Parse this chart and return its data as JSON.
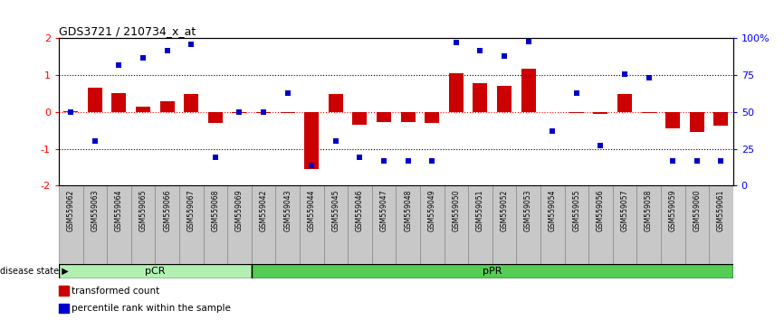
{
  "title": "GDS3721 / 210734_x_at",
  "samples": [
    "GSM559062",
    "GSM559063",
    "GSM559064",
    "GSM559065",
    "GSM559066",
    "GSM559067",
    "GSM559068",
    "GSM559069",
    "GSM559042",
    "GSM559043",
    "GSM559044",
    "GSM559045",
    "GSM559046",
    "GSM559047",
    "GSM559048",
    "GSM559049",
    "GSM559050",
    "GSM559051",
    "GSM559052",
    "GSM559053",
    "GSM559054",
    "GSM559055",
    "GSM559056",
    "GSM559057",
    "GSM559058",
    "GSM559059",
    "GSM559060",
    "GSM559061"
  ],
  "bar_values": [
    0.02,
    0.65,
    0.52,
    0.15,
    0.3,
    0.48,
    -0.3,
    -0.03,
    -0.03,
    -0.03,
    -1.55,
    0.48,
    -0.35,
    -0.28,
    -0.28,
    -0.3,
    1.05,
    0.78,
    0.7,
    1.18,
    0.0,
    -0.03,
    -0.05,
    0.5,
    -0.03,
    -0.45,
    -0.55,
    -0.38
  ],
  "percentile_values": [
    50,
    30,
    82,
    87,
    92,
    96,
    19,
    50,
    50,
    63,
    14,
    30,
    19,
    17,
    17,
    17,
    97,
    92,
    88,
    98,
    37,
    63,
    27,
    76,
    73,
    17,
    17,
    17
  ],
  "pCR_count": 8,
  "bar_color": "#cc0000",
  "dot_color": "#0000cc",
  "pCR_color": "#b2f0b2",
  "pPR_color": "#55cc55",
  "ylim_left": [
    -2,
    2
  ],
  "ylim_right": [
    0,
    100
  ],
  "left_yticks": [
    -2,
    -1,
    0,
    1,
    2
  ],
  "right_yticks": [
    0,
    25,
    50,
    75,
    100
  ],
  "right_yticklabels": [
    "0",
    "25",
    "50",
    "75",
    "100%"
  ],
  "group_labels": [
    "pCR",
    "pPR"
  ],
  "legend_bar_label": "transformed count",
  "legend_dot_label": "percentile rank within the sample",
  "disease_state_label": "disease state",
  "label_strip_bg": "#c8c8c8",
  "fig_bg": "#ffffff"
}
